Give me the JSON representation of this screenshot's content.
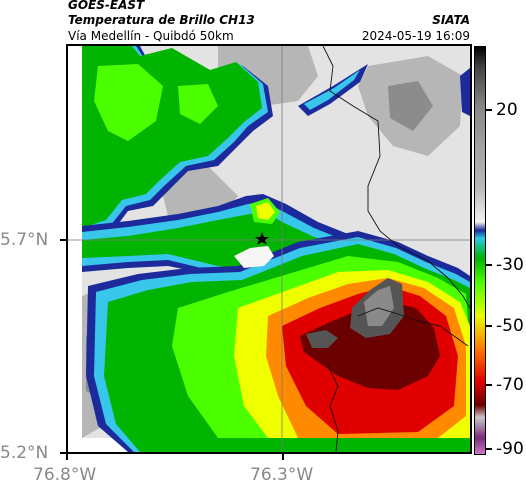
{
  "header": {
    "satellite": "GOES-EAST",
    "product": "Temperatura de Brillo CH13",
    "region": "Vía Medellín - Quibdó 50km",
    "org": "SIATA",
    "datetime": "2024-05-19 16:09"
  },
  "axes": {
    "lat_labels": [
      "5.7°N",
      "5.2°N"
    ],
    "lon_labels": [
      "76.8°W",
      "76.3°W"
    ]
  },
  "colorbar": {
    "labels": [
      "20",
      "-30",
      "-50",
      "-70",
      "-90"
    ],
    "colors": [
      "#000000",
      "#444444",
      "#888888",
      "#bbbbbb",
      "#f2f2f2",
      "#1a2a9a",
      "#28c8e6",
      "#00b400",
      "#4cff00",
      "#e6ff00",
      "#ff7a00",
      "#e60000",
      "#6b0000",
      "#c8c8c8",
      "#7a2a7a",
      "#d078c8"
    ]
  },
  "map": {
    "marker": "station-star",
    "colors": {
      "gray_light": "#e3e3e3",
      "gray_mid": "#b6b6b6",
      "gray_dark": "#8c8c8c",
      "white_edge": "#f7f7f7",
      "navy": "#1c2a9c",
      "cyan": "#38c6ea",
      "green": "#00b400",
      "lime": "#4cff00",
      "yellow": "#f0ff00",
      "orange": "#ff8a00",
      "red": "#e00000",
      "darkred": "#6a0000",
      "core": "#555555"
    }
  }
}
